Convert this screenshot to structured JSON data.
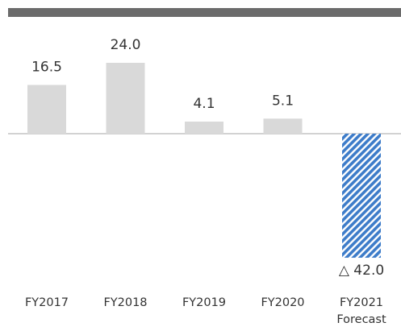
{
  "chart_data": {
    "type": "bar",
    "categories": [
      "FY2017",
      "FY2018",
      "FY2019",
      "FY2020",
      "FY2021 Forecast"
    ],
    "values": [
      16.5,
      24.0,
      4.1,
      5.1,
      -42.0
    ],
    "value_labels": [
      "16.5",
      "24.0",
      "4.1",
      "5.1",
      "△ 42.0"
    ],
    "colors": [
      "#d9d9d9",
      "#d9d9d9",
      "#d9d9d9",
      "#d9d9d9",
      "#3d7cc9"
    ],
    "hatched": [
      false,
      false,
      false,
      false,
      true
    ]
  }
}
